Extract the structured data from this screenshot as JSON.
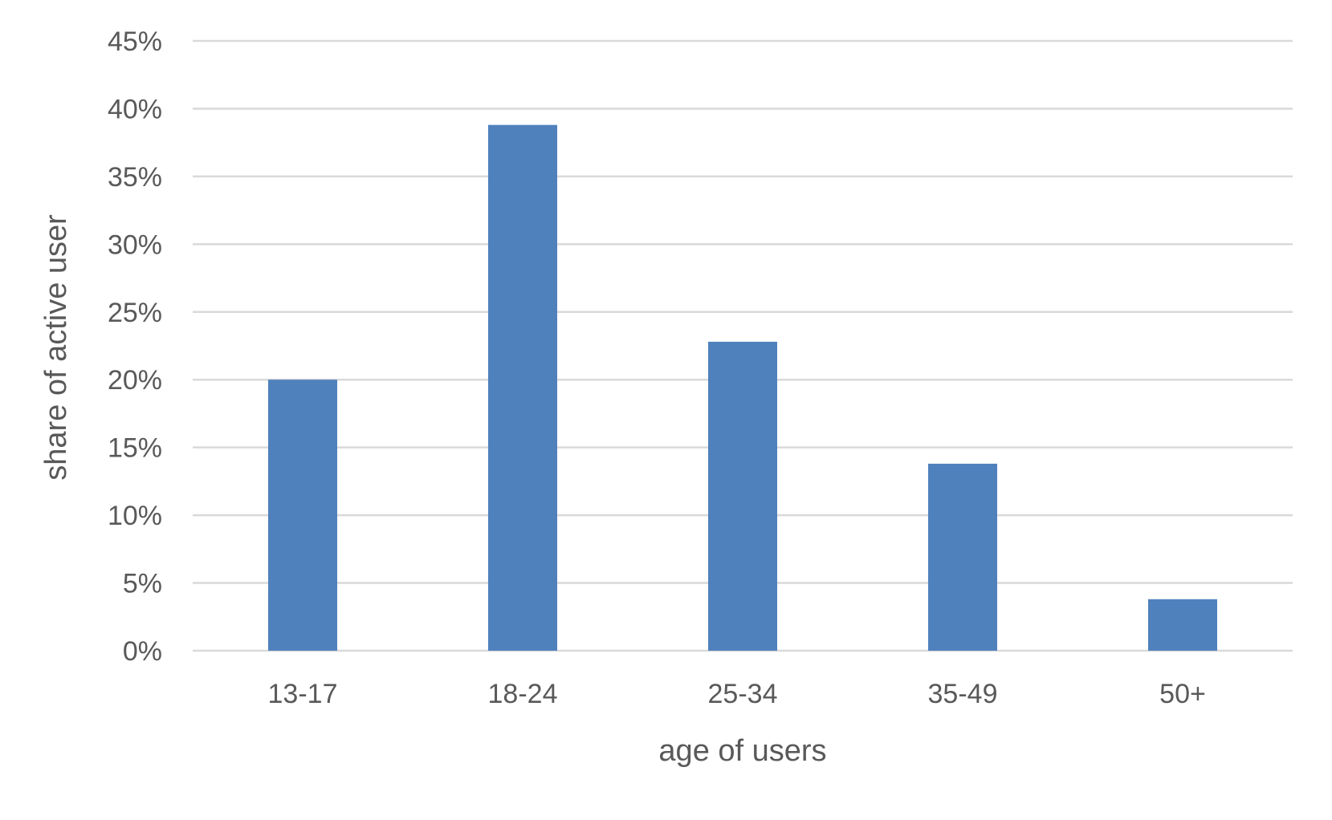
{
  "chart_data": {
    "type": "bar",
    "title": "",
    "categories": [
      "13-17",
      "18-24",
      "25-34",
      "35-49",
      "50+"
    ],
    "values": [
      20.0,
      38.8,
      22.8,
      13.8,
      3.8
    ],
    "value_unit": "%",
    "xlabel": "age of users",
    "ylabel": "share of active user",
    "ylim": [
      0,
      45
    ],
    "yticks": [
      0,
      5,
      10,
      15,
      20,
      25,
      30,
      35,
      40,
      45
    ],
    "ytick_labels": [
      "0%",
      "5%",
      "10%",
      "15%",
      "20%",
      "25%",
      "30%",
      "35%",
      "40%",
      "45%"
    ],
    "grid": true,
    "legend": "none",
    "bar_color": "#4f81bd",
    "grid_color": "#d9d9d9",
    "text_color": "#595959"
  }
}
